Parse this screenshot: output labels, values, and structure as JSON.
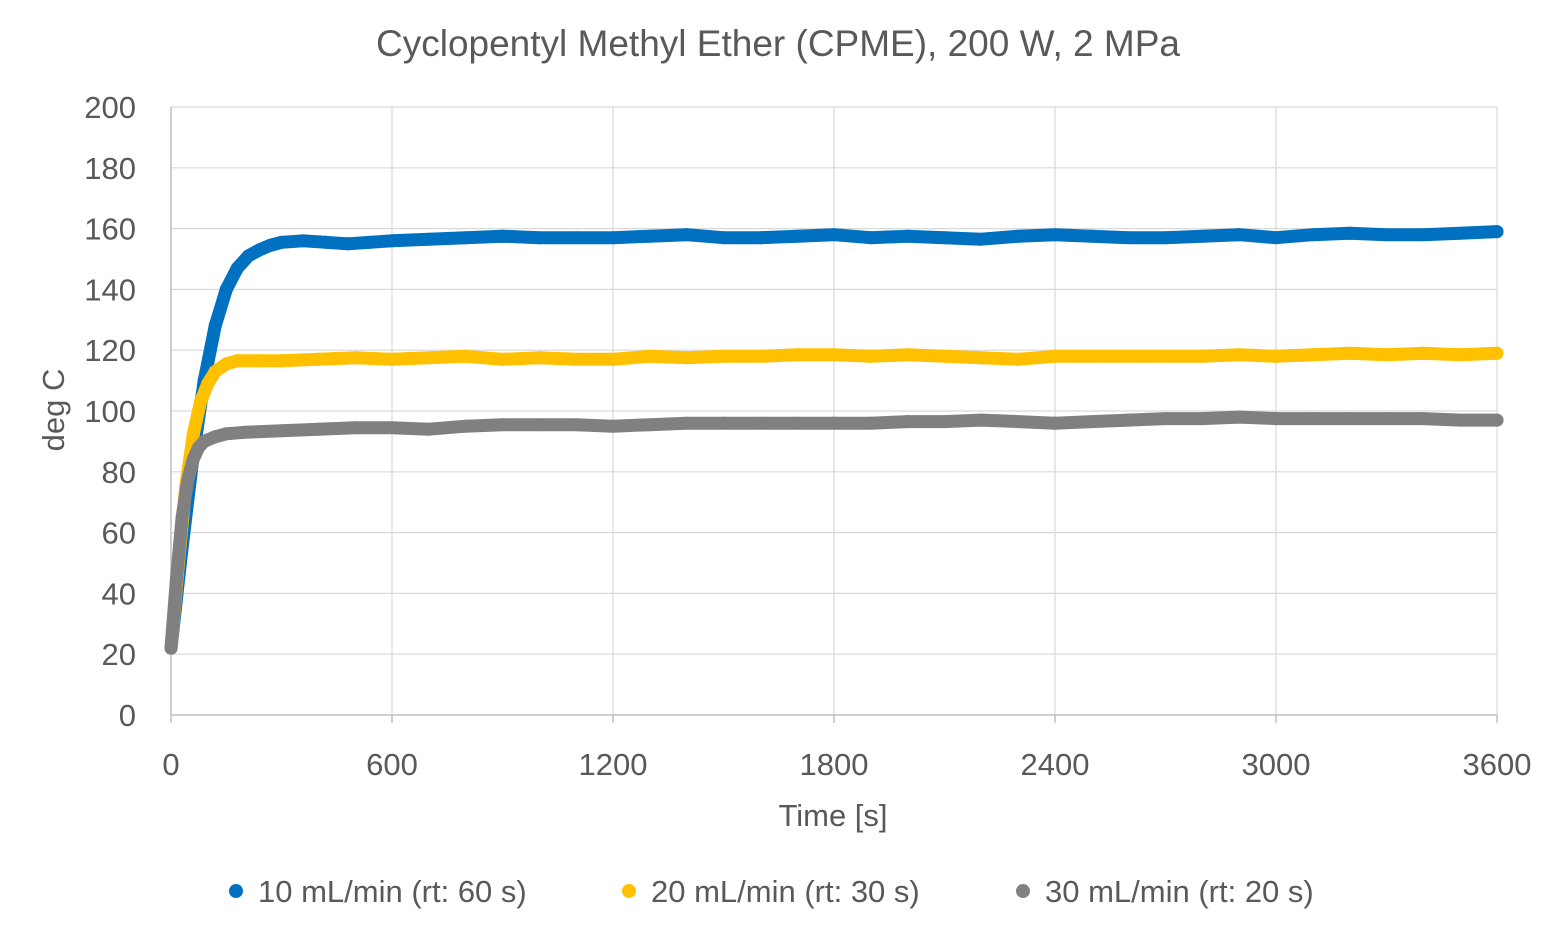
{
  "chart_data": {
    "type": "scatter",
    "title": "Cyclopentyl Methyl Ether (CPME), 200 W, 2 MPa",
    "xlabel": "Time [s]",
    "ylabel": "deg C",
    "xlim": [
      0,
      3600
    ],
    "ylim": [
      0,
      200
    ],
    "xticks": [
      0,
      600,
      1200,
      1800,
      2400,
      3000,
      3600
    ],
    "yticks": [
      0,
      20,
      40,
      60,
      80,
      100,
      120,
      140,
      160,
      180,
      200
    ],
    "grid": true,
    "legend_position": "bottom",
    "series": [
      {
        "name": "10 mL/min (rt: 60 s)",
        "color": "#0070c0",
        "points": [
          [
            0,
            22
          ],
          [
            30,
            55
          ],
          [
            60,
            85
          ],
          [
            90,
            110
          ],
          [
            120,
            128
          ],
          [
            150,
            140
          ],
          [
            180,
            147
          ],
          [
            210,
            151
          ],
          [
            240,
            153
          ],
          [
            270,
            154.5
          ],
          [
            300,
            155.5
          ],
          [
            360,
            156
          ],
          [
            420,
            155.5
          ],
          [
            480,
            155
          ],
          [
            540,
            155.5
          ],
          [
            600,
            156
          ],
          [
            700,
            156.5
          ],
          [
            800,
            157
          ],
          [
            900,
            157.5
          ],
          [
            1000,
            157
          ],
          [
            1100,
            157
          ],
          [
            1200,
            157
          ],
          [
            1300,
            157.5
          ],
          [
            1400,
            158
          ],
          [
            1500,
            157
          ],
          [
            1600,
            157
          ],
          [
            1700,
            157.5
          ],
          [
            1800,
            158
          ],
          [
            1900,
            157
          ],
          [
            2000,
            157.5
          ],
          [
            2100,
            157
          ],
          [
            2200,
            156.5
          ],
          [
            2300,
            157.5
          ],
          [
            2400,
            158
          ],
          [
            2500,
            157.5
          ],
          [
            2600,
            157
          ],
          [
            2700,
            157
          ],
          [
            2800,
            157.5
          ],
          [
            2900,
            158
          ],
          [
            3000,
            157
          ],
          [
            3100,
            158
          ],
          [
            3200,
            158.5
          ],
          [
            3300,
            158
          ],
          [
            3400,
            158
          ],
          [
            3500,
            158.5
          ],
          [
            3600,
            159
          ]
        ]
      },
      {
        "name": "20 mL/min (rt: 30 s)",
        "color": "#ffc000",
        "points": [
          [
            0,
            22
          ],
          [
            20,
            50
          ],
          [
            40,
            75
          ],
          [
            60,
            92
          ],
          [
            80,
            103
          ],
          [
            100,
            109
          ],
          [
            120,
            113
          ],
          [
            150,
            115.5
          ],
          [
            180,
            116.5
          ],
          [
            240,
            116.5
          ],
          [
            300,
            116.5
          ],
          [
            400,
            117
          ],
          [
            500,
            117.5
          ],
          [
            600,
            117
          ],
          [
            700,
            117.5
          ],
          [
            800,
            118
          ],
          [
            900,
            117
          ],
          [
            1000,
            117.5
          ],
          [
            1100,
            117
          ],
          [
            1200,
            117
          ],
          [
            1300,
            118
          ],
          [
            1400,
            117.5
          ],
          [
            1500,
            118
          ],
          [
            1600,
            118
          ],
          [
            1700,
            118.5
          ],
          [
            1800,
            118.5
          ],
          [
            1900,
            118
          ],
          [
            2000,
            118.5
          ],
          [
            2100,
            118
          ],
          [
            2200,
            117.5
          ],
          [
            2300,
            117
          ],
          [
            2400,
            118
          ],
          [
            2500,
            118
          ],
          [
            2600,
            118
          ],
          [
            2700,
            118
          ],
          [
            2800,
            118
          ],
          [
            2900,
            118.5
          ],
          [
            3000,
            118
          ],
          [
            3100,
            118.5
          ],
          [
            3200,
            119
          ],
          [
            3300,
            118.5
          ],
          [
            3400,
            119
          ],
          [
            3500,
            118.5
          ],
          [
            3600,
            119
          ]
        ]
      },
      {
        "name": "30 mL/min (rt: 20 s)",
        "color": "#808080",
        "points": [
          [
            0,
            22
          ],
          [
            15,
            45
          ],
          [
            30,
            65
          ],
          [
            45,
            77
          ],
          [
            60,
            84
          ],
          [
            75,
            88
          ],
          [
            90,
            90
          ],
          [
            120,
            91.5
          ],
          [
            150,
            92.5
          ],
          [
            200,
            93
          ],
          [
            300,
            93.5
          ],
          [
            400,
            94
          ],
          [
            500,
            94.5
          ],
          [
            600,
            94.5
          ],
          [
            700,
            94
          ],
          [
            800,
            95
          ],
          [
            900,
            95.5
          ],
          [
            1000,
            95.5
          ],
          [
            1100,
            95.5
          ],
          [
            1200,
            95
          ],
          [
            1300,
            95.5
          ],
          [
            1400,
            96
          ],
          [
            1500,
            96
          ],
          [
            1600,
            96
          ],
          [
            1700,
            96
          ],
          [
            1800,
            96
          ],
          [
            1900,
            96
          ],
          [
            2000,
            96.5
          ],
          [
            2100,
            96.5
          ],
          [
            2200,
            97
          ],
          [
            2300,
            96.5
          ],
          [
            2400,
            96
          ],
          [
            2500,
            96.5
          ],
          [
            2600,
            97
          ],
          [
            2700,
            97.5
          ],
          [
            2800,
            97.5
          ],
          [
            2900,
            98
          ],
          [
            3000,
            97.5
          ],
          [
            3100,
            97.5
          ],
          [
            3200,
            97.5
          ],
          [
            3300,
            97.5
          ],
          [
            3400,
            97.5
          ],
          [
            3500,
            97
          ],
          [
            3600,
            97
          ]
        ]
      }
    ]
  }
}
